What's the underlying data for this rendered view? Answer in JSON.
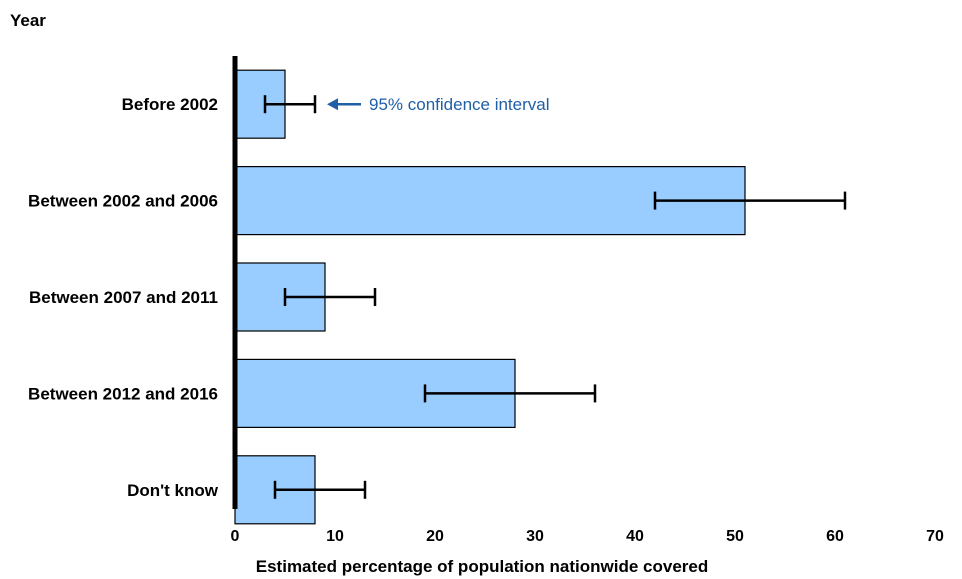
{
  "chart_data": {
    "type": "bar",
    "orientation": "horizontal",
    "ylabel": "Year",
    "xlabel": "Estimated percentage of population nationwide covered",
    "categories": [
      "Before 2002",
      "Between 2002 and 2006",
      "Between 2007 and 2011",
      "Between 2012 and 2016",
      "Don't know"
    ],
    "values": [
      5,
      51,
      9,
      28,
      8
    ],
    "ci_low": [
      3,
      42,
      5,
      19,
      4
    ],
    "ci_high": [
      8,
      61,
      14,
      36,
      13
    ],
    "xlim": [
      0,
      70
    ],
    "xticks": [
      0,
      10,
      20,
      30,
      40,
      50,
      60,
      70
    ],
    "grid": false,
    "annotation": {
      "text": "95% confidence interval",
      "target_category": "Before 2002"
    },
    "colors": {
      "bar_fill": "#99ccff",
      "bar_stroke": "#000000",
      "annotation": "#1f5fa6"
    }
  }
}
